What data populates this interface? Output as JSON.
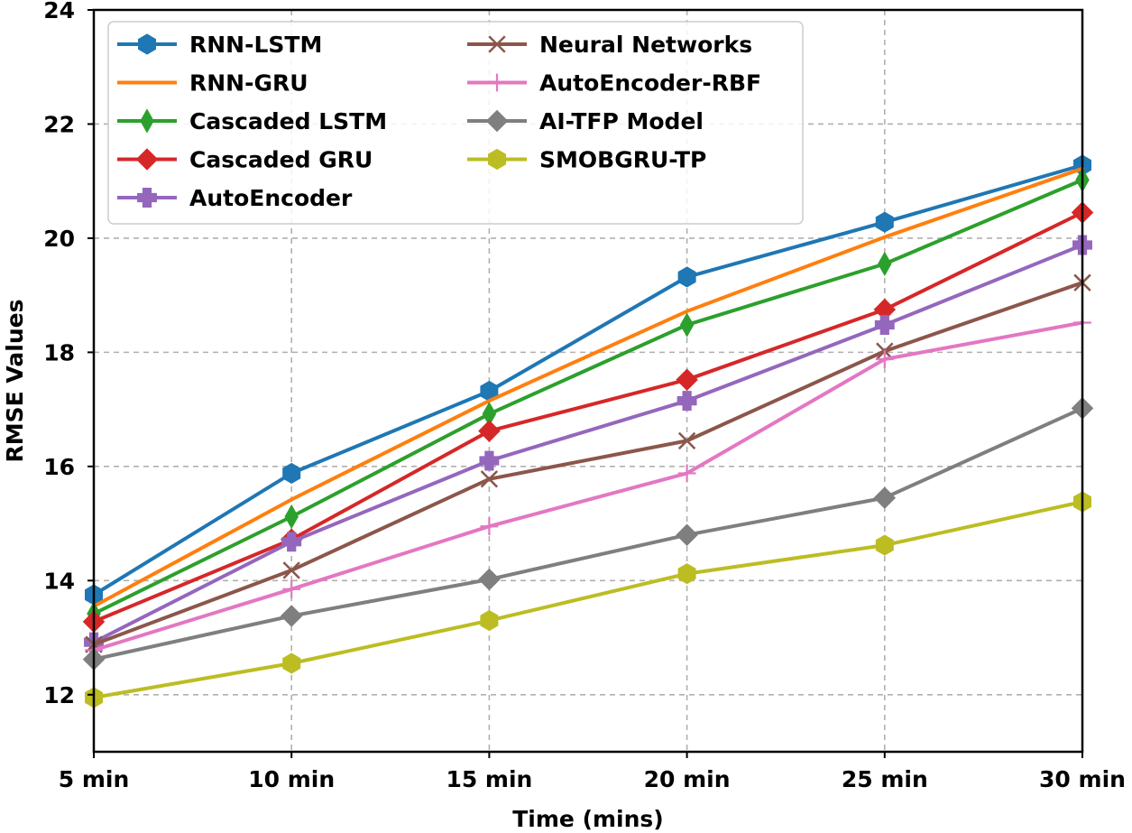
{
  "chart_data": {
    "type": "line",
    "title": "",
    "xlabel": "Time (mins)",
    "ylabel": "RMSE Values",
    "categories": [
      "5 min",
      "10 min",
      "15 min",
      "20 min",
      "25 min",
      "30 min"
    ],
    "ylim": [
      11,
      24
    ],
    "yticks": [
      12,
      14,
      16,
      18,
      20,
      22,
      24
    ],
    "grid": true,
    "legend_position": "top-left",
    "series": [
      {
        "name": "RNN-LSTM",
        "color": "#1f77b4",
        "marker": "hexagon",
        "values": [
          13.75,
          15.88,
          17.32,
          19.32,
          20.28,
          21.28
        ]
      },
      {
        "name": "RNN-GRU",
        "color": "#ff7f0e",
        "marker": "none",
        "values": [
          13.55,
          15.42,
          17.15,
          18.72,
          20.02,
          21.22
        ]
      },
      {
        "name": "Cascaded LSTM",
        "color": "#2ca02c",
        "marker": "thin-diamond",
        "values": [
          13.42,
          15.12,
          16.92,
          18.48,
          19.55,
          21.02
        ]
      },
      {
        "name": "Cascaded GRU",
        "color": "#d62728",
        "marker": "diamond",
        "values": [
          13.28,
          14.72,
          16.62,
          17.52,
          18.75,
          20.45
        ]
      },
      {
        "name": "AutoEncoder",
        "color": "#9467bd",
        "marker": "plus-filled",
        "values": [
          12.92,
          14.68,
          16.1,
          17.15,
          18.48,
          19.88
        ]
      },
      {
        "name": "Neural Networks",
        "color": "#8c564b",
        "marker": "x",
        "values": [
          12.88,
          14.18,
          15.78,
          16.45,
          18.02,
          19.22
        ]
      },
      {
        "name": "AutoEncoder-RBF",
        "color": "#e377c2",
        "marker": "plus",
        "values": [
          12.78,
          13.85,
          14.95,
          15.88,
          17.88,
          18.52
        ]
      },
      {
        "name": "AI-TFP Model",
        "color": "#7f7f7f",
        "marker": "diamond",
        "values": [
          12.62,
          13.38,
          14.02,
          14.8,
          15.45,
          17.02
        ]
      },
      {
        "name": "SMOBGRU-TP",
        "color": "#bcbd22",
        "marker": "hexagon",
        "values": [
          11.95,
          12.55,
          13.3,
          14.12,
          14.62,
          15.38
        ]
      }
    ]
  }
}
